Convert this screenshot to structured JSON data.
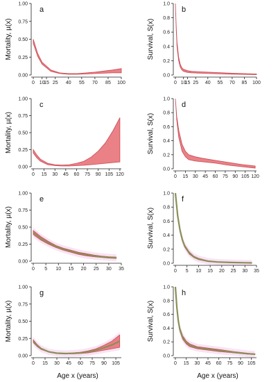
{
  "figure": {
    "x_axis_label": "Age x (years)",
    "colors": {
      "band": "#e8737a",
      "band_stroke": "#c94a52",
      "inner": "#8a8f57",
      "glow": "#f7d6f0",
      "axis": "#222222"
    }
  },
  "chart_data": [
    {
      "type": "area",
      "panel_label": "a",
      "ylabel": "Mortality, µ(x)",
      "x_ticks": [
        0,
        10,
        15,
        25,
        40,
        55,
        70,
        85,
        100
      ],
      "y_ticks": [
        0.0,
        0.25,
        0.5,
        0.75,
        1.0
      ],
      "xlim": [
        0,
        100
      ],
      "ylim": [
        0,
        1
      ],
      "x": [
        0,
        5,
        10,
        20,
        30,
        40,
        50,
        60,
        70,
        80,
        90,
        100
      ],
      "lower": [
        0.44,
        0.26,
        0.15,
        0.05,
        0.02,
        0.01,
        0.01,
        0.015,
        0.02,
        0.025,
        0.03,
        0.03
      ],
      "upper": [
        0.5,
        0.3,
        0.18,
        0.07,
        0.03,
        0.02,
        0.02,
        0.03,
        0.04,
        0.055,
        0.07,
        0.09
      ]
    },
    {
      "type": "area",
      "panel_label": "b",
      "ylabel": "Survival, S(x)",
      "x_ticks": [
        0,
        10,
        15,
        25,
        40,
        55,
        70,
        85,
        100
      ],
      "y_ticks": [
        0.0,
        0.2,
        0.4,
        0.6,
        0.8,
        1.0
      ],
      "xlim": [
        0,
        100
      ],
      "ylim": [
        0,
        1
      ],
      "x": [
        0,
        1,
        2,
        4,
        6,
        8,
        10,
        15,
        20,
        30,
        50,
        70,
        100
      ],
      "lower": [
        1.0,
        0.63,
        0.4,
        0.2,
        0.11,
        0.07,
        0.05,
        0.035,
        0.03,
        0.025,
        0.018,
        0.012,
        0.005
      ],
      "upper": [
        1.0,
        0.68,
        0.46,
        0.25,
        0.15,
        0.1,
        0.08,
        0.06,
        0.05,
        0.045,
        0.035,
        0.025,
        0.015
      ]
    },
    {
      "type": "area",
      "panel_label": "c",
      "ylabel": "Mortality, µ(x)",
      "x_ticks": [
        0,
        15,
        30,
        45,
        60,
        75,
        90,
        105,
        120
      ],
      "y_ticks": [
        0.0,
        0.25,
        0.5,
        0.75,
        1.0
      ],
      "xlim": [
        0,
        122
      ],
      "ylim": [
        0,
        1
      ],
      "x": [
        0,
        5,
        10,
        20,
        30,
        40,
        50,
        60,
        70,
        80,
        90,
        100,
        110,
        120
      ],
      "lower": [
        0.2,
        0.13,
        0.08,
        0.03,
        0.015,
        0.01,
        0.01,
        0.015,
        0.02,
        0.03,
        0.04,
        0.05,
        0.06,
        0.07
      ],
      "upper": [
        0.25,
        0.17,
        0.11,
        0.05,
        0.03,
        0.025,
        0.03,
        0.05,
        0.08,
        0.14,
        0.23,
        0.35,
        0.52,
        0.72
      ]
    },
    {
      "type": "area",
      "panel_label": "d",
      "ylabel": "Survival, S(x)",
      "x_ticks": [
        0,
        15,
        30,
        45,
        60,
        75,
        90,
        105,
        120
      ],
      "y_ticks": [
        0.0,
        0.2,
        0.4,
        0.6,
        0.8,
        1.0
      ],
      "xlim": [
        0,
        122
      ],
      "ylim": [
        0,
        1
      ],
      "x": [
        0,
        2,
        5,
        10,
        15,
        20,
        30,
        40,
        60,
        80,
        100,
        120
      ],
      "lower": [
        1.0,
        0.7,
        0.45,
        0.25,
        0.17,
        0.13,
        0.11,
        0.1,
        0.08,
        0.05,
        0.03,
        0.01
      ],
      "upper": [
        1.0,
        0.75,
        0.55,
        0.35,
        0.25,
        0.2,
        0.17,
        0.15,
        0.12,
        0.09,
        0.06,
        0.04
      ]
    },
    {
      "type": "area",
      "panel_label": "e",
      "ylabel": "Mortality, µ(x)",
      "x_ticks": [
        0,
        5,
        10,
        15,
        20,
        25,
        30,
        35
      ],
      "y_ticks": [
        0.0,
        0.25,
        0.5,
        0.75,
        1.0
      ],
      "xlim": [
        0,
        35
      ],
      "ylim": [
        0,
        1
      ],
      "x": [
        0,
        3,
        6,
        9,
        12,
        15,
        18,
        21,
        24,
        27,
        30,
        33
      ],
      "lower": [
        0.39,
        0.31,
        0.25,
        0.2,
        0.16,
        0.13,
        0.1,
        0.08,
        0.065,
        0.055,
        0.045,
        0.04
      ],
      "upper": [
        0.45,
        0.36,
        0.29,
        0.23,
        0.19,
        0.16,
        0.13,
        0.11,
        0.09,
        0.075,
        0.065,
        0.06
      ]
    },
    {
      "type": "area",
      "panel_label": "f",
      "ylabel": "Survival, S(x)",
      "x_ticks": [
        0,
        5,
        10,
        15,
        20,
        25,
        30,
        35
      ],
      "y_ticks": [
        0.0,
        0.2,
        0.4,
        0.6,
        0.8,
        1.0
      ],
      "xlim": [
        0,
        35
      ],
      "ylim": [
        0,
        1
      ],
      "x": [
        0,
        1,
        2,
        3,
        4,
        6,
        8,
        10,
        14,
        18,
        24,
        30,
        33
      ],
      "lower": [
        1.0,
        0.66,
        0.45,
        0.32,
        0.23,
        0.13,
        0.08,
        0.05,
        0.025,
        0.015,
        0.01,
        0.005,
        0.004
      ],
      "upper": [
        1.0,
        0.69,
        0.49,
        0.35,
        0.26,
        0.16,
        0.1,
        0.07,
        0.035,
        0.02,
        0.012,
        0.008,
        0.006
      ]
    },
    {
      "type": "area",
      "panel_label": "g",
      "ylabel": "Mortality, µ(x)",
      "x_ticks": [
        0,
        15,
        30,
        45,
        60,
        75,
        90,
        105
      ],
      "y_ticks": [
        0.0,
        0.25,
        0.5,
        0.75,
        1.0
      ],
      "xlim": [
        0,
        112
      ],
      "ylim": [
        0,
        1
      ],
      "x": [
        0,
        5,
        10,
        20,
        30,
        40,
        50,
        60,
        70,
        80,
        90,
        100,
        110
      ],
      "lower": [
        0.19,
        0.13,
        0.09,
        0.05,
        0.03,
        0.025,
        0.025,
        0.03,
        0.04,
        0.06,
        0.08,
        0.1,
        0.12
      ],
      "upper": [
        0.23,
        0.16,
        0.11,
        0.06,
        0.04,
        0.035,
        0.04,
        0.05,
        0.07,
        0.1,
        0.15,
        0.21,
        0.3
      ]
    },
    {
      "type": "area",
      "panel_label": "h",
      "ylabel": "Survival, S(x)",
      "x_ticks": [
        0,
        15,
        30,
        45,
        60,
        75,
        90,
        105
      ],
      "y_ticks": [
        0.0,
        0.2,
        0.4,
        0.6,
        0.8,
        1.0
      ],
      "xlim": [
        0,
        112
      ],
      "ylim": [
        0,
        1
      ],
      "x": [
        0,
        2,
        4,
        6,
        10,
        15,
        20,
        30,
        45,
        60,
        80,
        100,
        110
      ],
      "lower": [
        1.0,
        0.68,
        0.48,
        0.36,
        0.24,
        0.17,
        0.13,
        0.1,
        0.08,
        0.06,
        0.04,
        0.02,
        0.015
      ],
      "upper": [
        1.0,
        0.72,
        0.53,
        0.41,
        0.29,
        0.21,
        0.17,
        0.13,
        0.11,
        0.09,
        0.06,
        0.035,
        0.025
      ]
    }
  ]
}
